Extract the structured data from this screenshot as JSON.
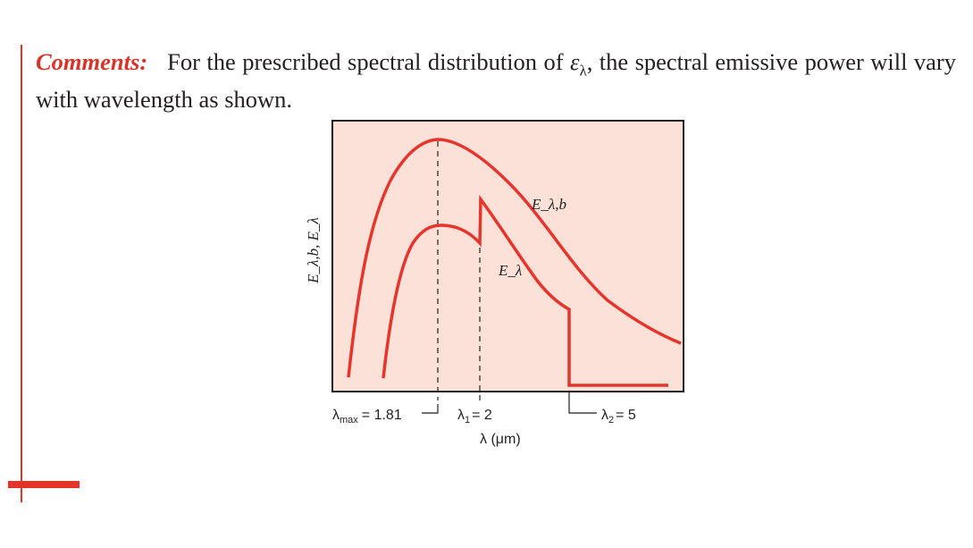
{
  "comment": {
    "label": "Comments:",
    "text_before": "For the prescribed spectral distribution of ",
    "symbol": "ε",
    "symbol_sub": "λ",
    "text_after": ", the spectral emissive power will vary with wavelength as shown."
  },
  "figure": {
    "y_axis_label": "E_λ,b, E_λ",
    "x_axis_label": "λ (μm)",
    "curve_blackbody_label": "E_λ,b",
    "curve_emissive_label": "E_λ",
    "marker_max": {
      "symbol": "λ",
      "subscript": "max",
      "value": "= 1.81"
    },
    "marker_1": {
      "symbol": "λ",
      "subscript": "1",
      "value": "= 2"
    },
    "marker_2": {
      "symbol": "λ",
      "subscript": "2",
      "value": "= 5"
    },
    "colors": {
      "plot_background": "#fbe1d8",
      "curve": "#e5352c",
      "accent": "#e3342b"
    }
  }
}
